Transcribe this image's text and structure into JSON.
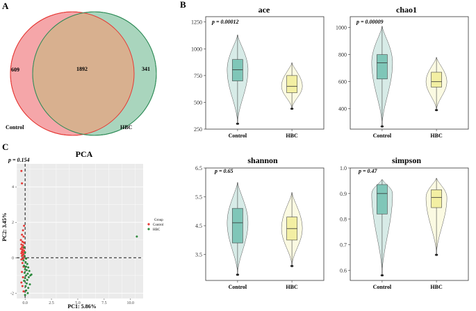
{
  "panel_labels": [
    "A",
    "B",
    "C"
  ],
  "colors": {
    "control_fill": "#f5a6a9",
    "control_edge": "#e53935",
    "hbc_fill": "#a9d5bd",
    "hbc_edge": "#2e8b57",
    "overlap_fill": "#d8b08f",
    "violin_control": "#d7ebe7",
    "box_control": "#7fc6b8",
    "violin_hbc": "#fbfae2",
    "box_hbc": "#f3efa3",
    "pca_panel": "#ebebeb",
    "pca_control": "#e53935",
    "pca_hbc": "#2e8b3e"
  },
  "chart_data": [
    {
      "type": "venn",
      "sets": [
        {
          "name": "Control",
          "unique": "609"
        },
        {
          "name": "HBC",
          "unique": "341"
        }
      ],
      "intersection": "1892"
    },
    {
      "type": "violin",
      "title": "ace",
      "p_label": "p = 0.00012",
      "categories": [
        "Control",
        "HBC"
      ],
      "ylim": [
        250,
        1300
      ],
      "yticks": [
        250,
        500,
        750,
        1000,
        1250
      ],
      "series": [
        {
          "name": "Control",
          "min": 300,
          "q1": 700,
          "median": 805,
          "q3": 900,
          "max": 1130
        },
        {
          "name": "HBC",
          "min": 440,
          "q1": 590,
          "median": 650,
          "q3": 750,
          "max": 870
        }
      ]
    },
    {
      "type": "violin",
      "title": "chao1",
      "p_label": "p = 0.00009",
      "categories": [
        "Control",
        "HBC"
      ],
      "ylim": [
        250,
        1080
      ],
      "yticks": [
        400,
        600,
        800,
        1000
      ],
      "series": [
        {
          "name": "Control",
          "min": 270,
          "q1": 620,
          "median": 740,
          "q3": 800,
          "max": 1010
        },
        {
          "name": "HBC",
          "min": 390,
          "q1": 560,
          "median": 600,
          "q3": 670,
          "max": 780
        }
      ]
    },
    {
      "type": "violin",
      "title": "shannon",
      "p_label": "p = 0.65",
      "categories": [
        "Control",
        "HBC"
      ],
      "ylim": [
        2.6,
        6.5
      ],
      "yticks": [
        3.5,
        4.5,
        5.5,
        6.5
      ],
      "series": [
        {
          "name": "Control",
          "min": 2.8,
          "q1": 3.9,
          "median": 4.6,
          "q3": 5.1,
          "max": 6.0
        },
        {
          "name": "HBC",
          "min": 3.1,
          "q1": 4.0,
          "median": 4.4,
          "q3": 4.8,
          "max": 5.65
        }
      ]
    },
    {
      "type": "violin",
      "title": "simpson",
      "p_label": "p = 0.47",
      "categories": [
        "Control",
        "HBC"
      ],
      "ylim": [
        0.56,
        1.0
      ],
      "yticks": [
        0.6,
        0.7,
        0.8,
        0.9,
        1.0
      ],
      "series": [
        {
          "name": "Control",
          "min": 0.58,
          "q1": 0.82,
          "median": 0.9,
          "q3": 0.935,
          "max": 0.955
        },
        {
          "name": "HBC",
          "min": 0.66,
          "q1": 0.845,
          "median": 0.885,
          "q3": 0.915,
          "max": 0.96
        }
      ]
    },
    {
      "type": "scatter",
      "title": "PCA",
      "p_label": "p = 0.154",
      "xlabel": "PC1: 5.86%",
      "ylabel": "PC2: 3.45%",
      "xlim": [
        -0.8,
        11.2
      ],
      "ylim": [
        -2.3,
        5.3
      ],
      "xticks": [
        "0.0",
        "2.5",
        "5.0",
        "7.5",
        "10.0"
      ],
      "xtick_values": [
        0,
        2.5,
        5,
        7.5,
        10
      ],
      "yticks": [
        "-2",
        "0",
        "2",
        "4"
      ],
      "ytick_values": [
        -2,
        0,
        2,
        4
      ],
      "legend": {
        "title": "Group",
        "entries": [
          "Control",
          "HBC"
        ],
        "position": "right"
      },
      "series": [
        {
          "name": "Control",
          "points": [
            [
              -0.35,
              4.9
            ],
            [
              -0.3,
              4.2
            ],
            [
              -0.1,
              1.8
            ],
            [
              -0.2,
              1.55
            ],
            [
              -0.3,
              1.3
            ],
            [
              -0.15,
              1.2
            ],
            [
              -0.4,
              1.0
            ],
            [
              -0.25,
              0.9
            ],
            [
              -0.1,
              0.85
            ],
            [
              -0.35,
              0.75
            ],
            [
              -0.2,
              0.7
            ],
            [
              -0.3,
              0.6
            ],
            [
              -0.15,
              0.55
            ],
            [
              -0.4,
              0.5
            ],
            [
              -0.25,
              0.45
            ],
            [
              -0.1,
              0.4
            ],
            [
              -0.3,
              0.35
            ],
            [
              -0.2,
              0.3
            ],
            [
              -0.35,
              0.25
            ],
            [
              -0.15,
              0.2
            ],
            [
              -0.25,
              0.15
            ],
            [
              -0.3,
              0.1
            ],
            [
              -0.1,
              0.05
            ],
            [
              -0.2,
              -0.05
            ],
            [
              -0.35,
              -0.1
            ],
            [
              -0.25,
              -0.3
            ],
            [
              -0.15,
              -0.5
            ],
            [
              -0.3,
              -0.8
            ],
            [
              -0.2,
              -1.1
            ],
            [
              -0.35,
              -1.4
            ],
            [
              -0.25,
              -1.6
            ],
            [
              -0.15,
              -1.9
            ]
          ]
        },
        {
          "name": "HBC",
          "points": [
            [
              10.6,
              1.2
            ],
            [
              -0.1,
              0.6
            ],
            [
              0.0,
              0.3
            ],
            [
              -0.05,
              0.1
            ],
            [
              0.1,
              -0.05
            ],
            [
              -0.15,
              -0.15
            ],
            [
              0.05,
              -0.25
            ],
            [
              0.2,
              -0.35
            ],
            [
              -0.1,
              -0.45
            ],
            [
              0.1,
              -0.5
            ],
            [
              0.3,
              -0.55
            ],
            [
              0.0,
              -0.65
            ],
            [
              0.15,
              -0.7
            ],
            [
              0.4,
              -0.75
            ],
            [
              -0.05,
              -0.85
            ],
            [
              0.25,
              -0.9
            ],
            [
              0.1,
              -1.0
            ],
            [
              0.5,
              -1.0
            ],
            [
              0.35,
              -1.1
            ],
            [
              0.0,
              -1.15
            ],
            [
              0.2,
              -1.25
            ],
            [
              -0.1,
              -1.3
            ],
            [
              0.15,
              -1.45
            ],
            [
              0.45,
              -1.5
            ],
            [
              0.05,
              -1.6
            ],
            [
              0.3,
              -1.7
            ],
            [
              0.1,
              -1.85
            ],
            [
              0.25,
              -2.0
            ],
            [
              0.0,
              -2.1
            ],
            [
              0.6,
              -0.95
            ]
          ]
        }
      ]
    }
  ]
}
